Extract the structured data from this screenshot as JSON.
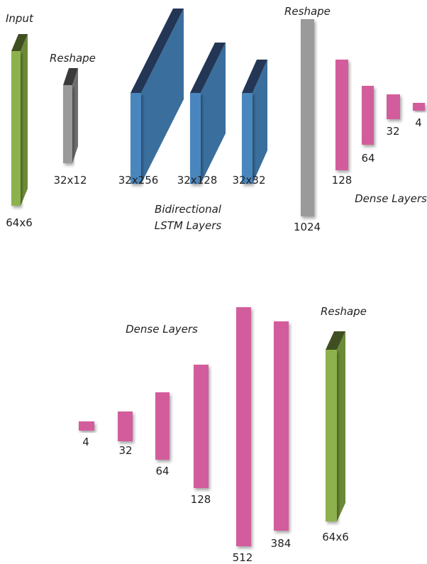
{
  "encoder": {
    "input_caption": "Input",
    "reshape_caption": "Reshape",
    "lstm_caption_line1": "Bidirectional",
    "lstm_caption_line2": "LSTM Layers",
    "reshape2_caption": "Reshape",
    "dense_caption": "Dense Layers",
    "layers": [
      {
        "label": "64x6",
        "color": "#8db24e"
      },
      {
        "label": "32x12",
        "color": "#9a9a9a"
      },
      {
        "label": "32x256",
        "color": "#4a86be"
      },
      {
        "label": "32x128",
        "color": "#4a86be"
      },
      {
        "label": "32x32",
        "color": "#4a86be"
      },
      {
        "label": "1024",
        "color": "#9a9a9a"
      },
      {
        "label": "128",
        "color": "#d35d9c"
      },
      {
        "label": "64",
        "color": "#d35d9c"
      },
      {
        "label": "32",
        "color": "#d35d9c"
      },
      {
        "label": "4",
        "color": "#d35d9c"
      }
    ]
  },
  "decoder": {
    "dense_caption": "Dense Layers",
    "reshape_caption": "Reshape",
    "layers": [
      {
        "label": "4",
        "color": "#d35d9c"
      },
      {
        "label": "32",
        "color": "#d35d9c"
      },
      {
        "label": "64",
        "color": "#d35d9c"
      },
      {
        "label": "128",
        "color": "#d35d9c"
      },
      {
        "label": "512",
        "color": "#d35d9c"
      },
      {
        "label": "384",
        "color": "#d35d9c"
      },
      {
        "label": "64x6",
        "color": "#8db24e"
      }
    ]
  }
}
